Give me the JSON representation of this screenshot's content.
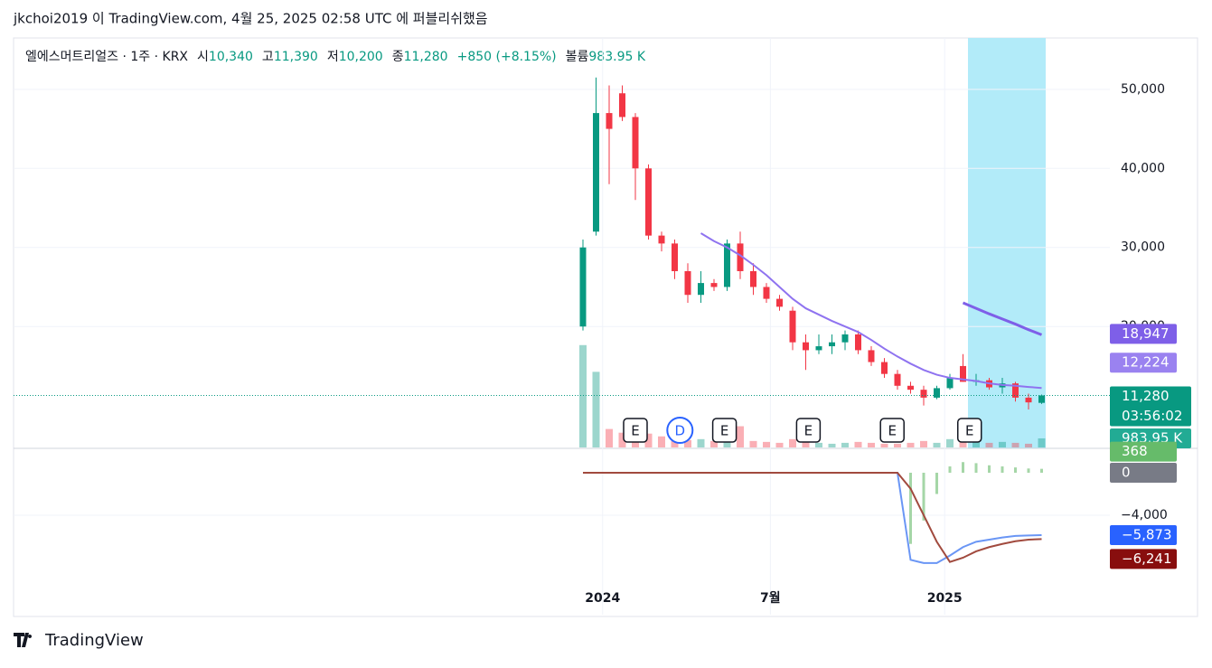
{
  "header": {
    "publisher": "jkchoi2019 이 TradingView.com, 4월 25, 2025 02:58 UTC 에 퍼블리쉬했음"
  },
  "legend": {
    "symbol": "엘에스머트리얼즈 · 1주 · KRX",
    "o_label": "시",
    "o": "10,340",
    "h_label": "고",
    "h": "11,390",
    "l_label": "저",
    "l": "10,200",
    "c_label": "종",
    "c": "11,280",
    "change": "+850 (+8.15%)",
    "vol_label": "볼륨",
    "vol": "983.95 K"
  },
  "footer": {
    "brand": "TradingView"
  },
  "chart_data": {
    "type": "candlestick",
    "candles": [
      [
        20000,
        31000,
        19500,
        30000
      ],
      [
        32000,
        51500,
        31500,
        47000
      ],
      [
        47000,
        50500,
        38000,
        45000
      ],
      [
        49500,
        50500,
        46000,
        46500
      ],
      [
        46500,
        47000,
        36000,
        40000
      ],
      [
        40000,
        40500,
        31000,
        31500
      ],
      [
        31500,
        32000,
        29500,
        30500
      ],
      [
        30500,
        31000,
        26000,
        27000
      ],
      [
        27000,
        28000,
        23000,
        24000
      ],
      [
        24000,
        27000,
        23000,
        25500
      ],
      [
        25500,
        26000,
        24500,
        25000
      ],
      [
        25000,
        31000,
        24500,
        30500
      ],
      [
        30500,
        32000,
        26000,
        27000
      ],
      [
        27000,
        28000,
        24000,
        25000
      ],
      [
        25000,
        25500,
        23000,
        23500
      ],
      [
        23500,
        24000,
        22000,
        22500
      ],
      [
        22000,
        22500,
        17000,
        18000
      ],
      [
        18000,
        19000,
        14500,
        17000
      ],
      [
        17000,
        19000,
        16500,
        17500
      ],
      [
        17500,
        19000,
        16500,
        18000
      ],
      [
        18000,
        19500,
        17000,
        19000
      ],
      [
        19000,
        19500,
        16500,
        17000
      ],
      [
        17000,
        17500,
        15000,
        15500
      ],
      [
        15500,
        16000,
        13500,
        14000
      ],
      [
        14000,
        14500,
        12000,
        12500
      ],
      [
        12500,
        13000,
        11500,
        12000
      ],
      [
        12000,
        12500,
        10000,
        11000
      ],
      [
        11000,
        12500,
        10800,
        12200
      ],
      [
        12200,
        14000,
        12000,
        13500
      ],
      [
        15000,
        16500,
        13000,
        13000
      ],
      [
        13000,
        14000,
        12500,
        13200
      ],
      [
        13200,
        13500,
        12000,
        12300
      ],
      [
        12300,
        13500,
        11500,
        12800
      ],
      [
        12800,
        13000,
        10500,
        11000
      ],
      [
        11000,
        11500,
        9500,
        10400
      ],
      [
        10340,
        11390,
        10200,
        11280
      ]
    ],
    "volume": [
      11100,
      8200,
      2000,
      1600,
      1800,
      1500,
      1200,
      1000,
      800,
      900,
      700,
      2500,
      2300,
      700,
      600,
      500,
      900,
      700,
      500,
      400,
      500,
      600,
      500,
      400,
      400,
      500,
      700,
      500,
      900,
      1000,
      600,
      500,
      600,
      500,
      400,
      983.95
    ],
    "ma": [
      null,
      null,
      null,
      null,
      null,
      null,
      null,
      null,
      null,
      31800,
      30800,
      30000,
      29000,
      27800,
      26500,
      25000,
      23500,
      22300,
      21500,
      20700,
      20000,
      19300,
      18300,
      17200,
      16200,
      15300,
      14500,
      13900,
      13500,
      13300,
      13100,
      12800,
      12600,
      12500,
      12350,
      12224
    ],
    "ma2": [
      null,
      null,
      null,
      null,
      null,
      null,
      null,
      null,
      null,
      null,
      null,
      null,
      null,
      null,
      null,
      null,
      null,
      null,
      null,
      null,
      null,
      null,
      null,
      null,
      null,
      null,
      null,
      null,
      null,
      23000,
      22300,
      21600,
      20950,
      20300,
      19600,
      18947
    ],
    "macd": [
      0,
      0,
      0,
      0,
      0,
      0,
      0,
      0,
      0,
      0,
      0,
      0,
      0,
      0,
      0,
      0,
      0,
      0,
      0,
      0,
      0,
      0,
      0,
      0,
      0,
      -8200,
      -8500,
      -8500,
      -7800,
      -7000,
      -6500,
      -6300,
      -6100,
      -5950,
      -5900,
      -5873
    ],
    "signal": [
      0,
      0,
      0,
      0,
      0,
      0,
      0,
      0,
      0,
      0,
      0,
      0,
      0,
      0,
      0,
      0,
      0,
      0,
      0,
      0,
      0,
      0,
      0,
      0,
      0,
      -1500,
      -4000,
      -6500,
      -8400,
      -8000,
      -7400,
      -7000,
      -6700,
      -6450,
      -6300,
      -6241
    ],
    "hist": [
      0,
      0,
      0,
      0,
      0,
      0,
      0,
      0,
      0,
      0,
      0,
      0,
      0,
      0,
      0,
      0,
      0,
      0,
      0,
      0,
      0,
      0,
      0,
      0,
      0,
      -6700,
      -4500,
      -2000,
      600,
      1000,
      900,
      700,
      600,
      500,
      400,
      368
    ],
    "ylim": [
      4700,
      56500
    ],
    "yticks": [
      {
        "value": 20000,
        "label": "20,000"
      },
      {
        "value": 30000,
        "label": "30,000"
      },
      {
        "value": 40000,
        "label": "40,000"
      },
      {
        "value": 50000,
        "label": "50,000"
      }
    ],
    "y2lim": [
      -13360,
      2210
    ],
    "y2ticks": [
      {
        "value": -4000,
        "label": "−4,000"
      }
    ],
    "xticks": [
      {
        "value": 1.5,
        "label": "2024"
      },
      {
        "value": 14.3,
        "label": "7월"
      },
      {
        "value": 27.6,
        "label": "2025"
      }
    ],
    "events": [
      {
        "x": 4,
        "label": "E"
      },
      {
        "x": 7.4,
        "label": "D"
      },
      {
        "x": 10.8,
        "label": "E"
      },
      {
        "x": 17.2,
        "label": "E"
      },
      {
        "x": 23.6,
        "label": "E"
      },
      {
        "x": 29.5,
        "label": "E"
      }
    ],
    "price_labels": [
      {
        "value": 18947,
        "label": "18,947",
        "color": "#7e5fe8"
      },
      {
        "value": 12224,
        "label": "12,224",
        "color": "#9a82f0"
      },
      {
        "value": 11280,
        "label": "11,280",
        "color": "#089981"
      }
    ],
    "countdown": "03:56:02",
    "vol_label": {
      "value": 983.95,
      "label": "983.95 K",
      "color": "#22ab94"
    },
    "macd_labels": [
      {
        "value": 368,
        "label": "368",
        "color": "#66bb6a"
      },
      {
        "value": 0,
        "label": "0",
        "color": "#787b86"
      },
      {
        "value": -5873,
        "label": "−5,873",
        "color": "#2962ff"
      },
      {
        "value": -6241,
        "label": "−6,241",
        "color": "#880e0e"
      }
    ],
    "up_color": "#089981",
    "down_color": "#f23645",
    "ma_color": "#8f73f0",
    "ma2_color": "#7e5fe8",
    "macd_color": "#6a96f5",
    "signal_color": "#a14a3e",
    "hist_color": "#a5d6a7"
  }
}
